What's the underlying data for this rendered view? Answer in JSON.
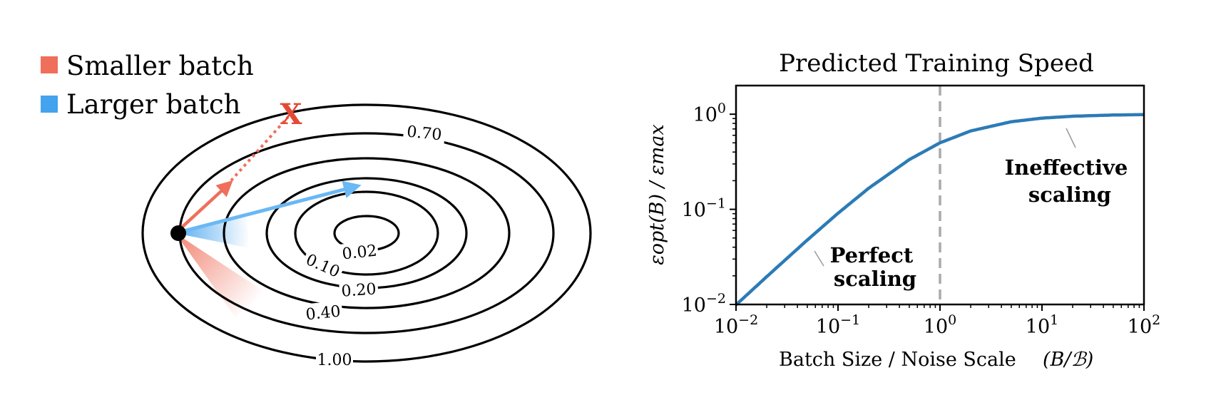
{
  "legend": [
    {
      "label": "Smaller batch",
      "color": "#ef6f5a"
    },
    {
      "label": "Larger batch",
      "color": "#44a3ee"
    }
  ],
  "contour_levels": [
    "0.02",
    "0.10",
    "0.20",
    "0.40",
    "0.70",
    "1.00"
  ],
  "marker": "X",
  "colors": {
    "smaller": "#ef6f5a",
    "larger": "#44a3ee",
    "curve": "#2c7bb6",
    "dash": "#aaaaaa",
    "ink": "#000000"
  },
  "chart_data": {
    "type": "line",
    "title": "Predicted Training Speed",
    "xlabel": "Batch Size / Noise Scale",
    "xlabel_math": "(B/ℬ)",
    "ylabel": "εopt(B) / εmax",
    "x_scale": "log",
    "y_scale": "log",
    "xlim": [
      0.01,
      100
    ],
    "ylim": [
      0.01,
      2
    ],
    "x_ticks": [
      {
        "value": 0.01,
        "base": "10",
        "exp": "−2"
      },
      {
        "value": 0.1,
        "base": "10",
        "exp": "−1"
      },
      {
        "value": 1,
        "base": "10",
        "exp": "0"
      },
      {
        "value": 10,
        "base": "10",
        "exp": "1"
      },
      {
        "value": 100,
        "base": "10",
        "exp": "2"
      }
    ],
    "y_ticks": [
      {
        "value": 0.01,
        "base": "10",
        "exp": "−2"
      },
      {
        "value": 0.1,
        "base": "10",
        "exp": "−1"
      },
      {
        "value": 1,
        "base": "10",
        "exp": "0"
      }
    ],
    "series": [
      {
        "x": [
          0.01,
          0.02,
          0.05,
          0.1,
          0.2,
          0.5,
          1,
          2,
          5,
          10,
          20,
          50,
          100
        ],
        "y": [
          0.0099,
          0.0196,
          0.0476,
          0.0909,
          0.1667,
          0.3333,
          0.5,
          0.6667,
          0.8333,
          0.9091,
          0.9524,
          0.9804,
          0.9901
        ]
      }
    ],
    "vline_x": 1,
    "annotations": [
      {
        "text": [
          "Perfect",
          "scaling"
        ],
        "x": 0.06,
        "y": 0.025
      },
      {
        "text": [
          "Ineffective",
          "scaling"
        ],
        "x": 15,
        "y": 0.35
      }
    ]
  }
}
